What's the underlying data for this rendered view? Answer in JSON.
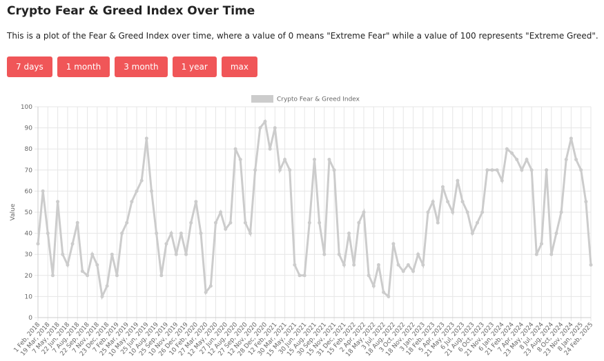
{
  "header": {
    "title": "Crypto Fear & Greed Index Over Time",
    "description": "This is a plot of the Fear & Greed Index over time, where a value of 0 means \"Extreme Fear\" while a value of 100 represents \"Extreme Greed\"."
  },
  "buttons": [
    "7 days",
    "1 month",
    "3 month",
    "1 year",
    "max"
  ],
  "chart_data": {
    "type": "line",
    "y_label": "Value",
    "legend": "top",
    "grid": true,
    "ylim": [
      0,
      100
    ],
    "yticks": [
      0,
      10,
      20,
      30,
      40,
      50,
      60,
      70,
      80,
      90,
      100
    ],
    "categories": [
      "1 Feb, 2018",
      null,
      "19 Mar, 2018",
      null,
      "7 May, 2018",
      null,
      "22 Jun, 2018",
      null,
      "7 Aug, 2018",
      null,
      "22 Sep, 2018",
      null,
      "7 Nov, 2018",
      null,
      "23 Dec, 2018",
      null,
      "7 Feb, 2019",
      null,
      "25 Mar, 2019",
      null,
      "10 May, 2019",
      null,
      "25 Jun, 2019",
      null,
      "10 Aug, 2019",
      null,
      "25 Sep, 2019",
      null,
      "10 Nov, 2019",
      null,
      "26 Dec, 2019",
      null,
      "10 Feb, 2020",
      null,
      "27 Mar, 2020",
      null,
      "12 May, 2020",
      null,
      "27 Jun, 2020",
      null,
      "12 Aug, 2020",
      null,
      "27 Sep, 2020",
      null,
      "12 Nov, 2020",
      null,
      "28 Dec, 2020",
      null,
      "12 Feb, 2021",
      null,
      "30 Mar, 2021",
      null,
      "15 May, 2021",
      null,
      "30 Jun, 2021",
      null,
      "15 Aug, 2021",
      null,
      "30 Sep, 2021",
      null,
      "15 Nov, 2021",
      null,
      "31 Dec, 2021",
      null,
      "15 Feb, 2022",
      null,
      "2 Apr, 2022",
      null,
      "18 May, 2022",
      null,
      "3 Jul, 2022",
      null,
      "18 Aug, 2022",
      null,
      "3 Oct, 2022",
      null,
      "18 Nov, 2022",
      null,
      "3 Jan, 2023",
      null,
      "18 Feb, 2023",
      null,
      "5 Apr, 2023",
      null,
      "21 May, 2023",
      null,
      "6 Jul, 2023",
      null,
      "21 Aug, 2023",
      null,
      "6 Oct, 2023",
      null,
      "21 Nov, 2023",
      null,
      "6 Jan, 2024",
      null,
      "21 Feb, 2024",
      null,
      "7 Apr, 2024",
      null,
      "23 May, 2024",
      null,
      "8 Jul, 2024",
      null,
      "23 Aug, 2024",
      null,
      "8 Oct, 2024",
      null,
      "23 Nov, 2024",
      null,
      "8 Jan, 2025",
      null,
      "24 Feb, 2025"
    ],
    "series": [
      {
        "name": "Crypto Fear & Greed Index",
        "color": "#cccccc",
        "values": [
          35,
          60,
          40,
          20,
          55,
          30,
          25,
          35,
          45,
          22,
          20,
          30,
          25,
          10,
          15,
          30,
          20,
          40,
          45,
          55,
          60,
          65,
          85,
          60,
          40,
          20,
          35,
          40,
          30,
          40,
          30,
          45,
          55,
          40,
          12,
          15,
          45,
          50,
          42,
          45,
          80,
          75,
          45,
          40,
          70,
          90,
          93,
          80,
          90,
          70,
          75,
          70,
          25,
          20,
          20,
          45,
          75,
          45,
          30,
          75,
          70,
          30,
          25,
          40,
          25,
          45,
          50,
          20,
          15,
          25,
          12,
          10,
          35,
          25,
          22,
          25,
          22,
          30,
          25,
          50,
          55,
          45,
          62,
          55,
          50,
          65,
          55,
          50,
          40,
          45,
          50,
          70,
          70,
          70,
          65,
          80,
          78,
          75,
          70,
          75,
          70,
          30,
          35,
          70,
          30,
          40,
          50,
          75,
          85,
          75,
          70,
          55,
          25
        ]
      }
    ]
  }
}
